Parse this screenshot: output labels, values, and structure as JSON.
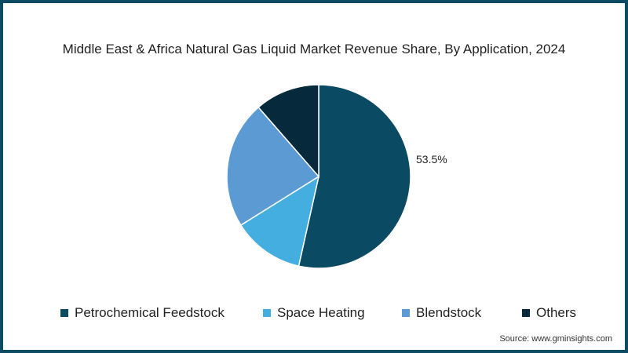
{
  "chart_data": {
    "type": "pie",
    "title": "Middle East & Africa Natural Gas Liquid Market Revenue Share, By Application, 2024",
    "categories": [
      "Petrochemical Feedstock",
      "Space Heating",
      "Blendstock",
      "Others"
    ],
    "values": [
      53.5,
      12.6,
      22.5,
      11.4
    ],
    "colors": [
      "#0a4a62",
      "#45aee0",
      "#5c9ad4",
      "#062a3b"
    ],
    "data_labels": [
      {
        "category": "Petrochemical Feedstock",
        "text": "53.5%"
      }
    ],
    "legend_position": "bottom",
    "start_angle": "top, clockwise"
  },
  "title": "Middle East & Africa Natural Gas Liquid Market Revenue Share, By Application, 2024",
  "label_main": "53.5%",
  "legend": [
    {
      "label": "Petrochemical Feedstock",
      "color": "#0a4a62"
    },
    {
      "label": "Space Heating",
      "color": "#45aee0"
    },
    {
      "label": "Blendstock",
      "color": "#5c9ad4"
    },
    {
      "label": "Others",
      "color": "#062a3b"
    }
  ],
  "source": "Source: www.gminsights.com",
  "frame_color": "#0d4a63"
}
